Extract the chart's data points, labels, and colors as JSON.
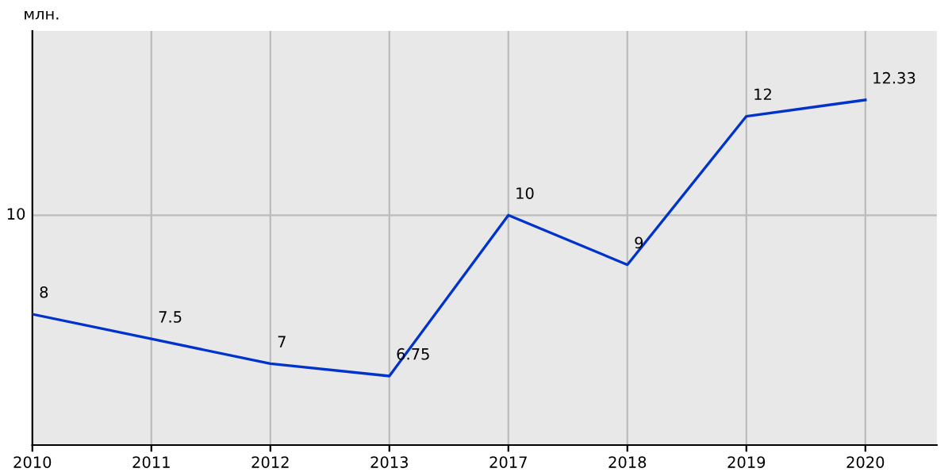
{
  "chart_data": {
    "type": "line",
    "annotations": [
      "млн."
    ],
    "categories": [
      "2010",
      "2011",
      "2012",
      "2013",
      "2017",
      "2018",
      "2019",
      "2020"
    ],
    "series": [
      {
        "color": "#0033cc",
        "values": [
          8,
          7.5,
          7,
          6.75,
          10,
          9,
          12,
          12.33
        ]
      }
    ],
    "ref_lines": [
      {
        "axis": "y",
        "value": 10,
        "label": "10",
        "color": "#bbbbbb"
      }
    ],
    "grid": "x",
    "data_labels": true,
    "marker": "none",
    "line_style": "solid"
  }
}
